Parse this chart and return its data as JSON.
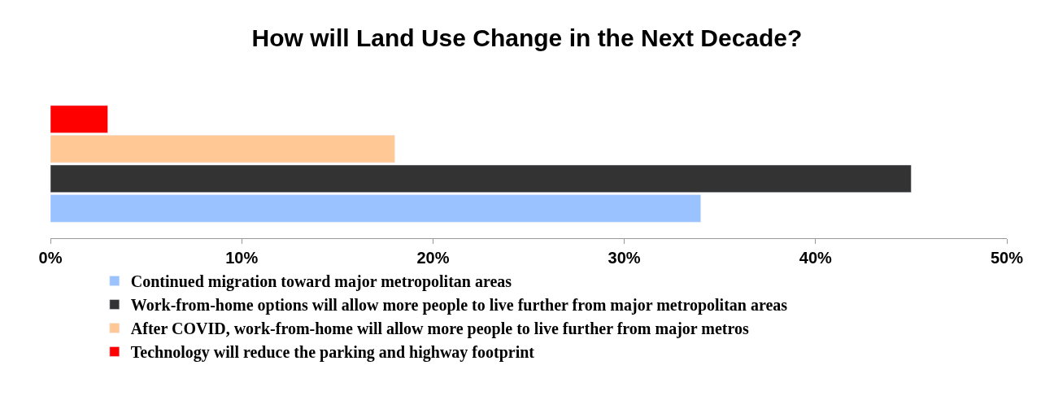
{
  "chart_data": {
    "type": "bar",
    "orientation": "horizontal",
    "title": "How will Land Use Change in the Next Decade?",
    "categories": [
      null
    ],
    "series": [
      {
        "name": "Technology will reduce the parking and highway footprint",
        "color": "#ff0000",
        "values": [
          3
        ]
      },
      {
        "name": "After COVID, work-from-home will allow more people to live further from major metros",
        "color": "#ffc895",
        "values": [
          18
        ]
      },
      {
        "name": "Work-from-home options will allow more people to live further from major metropolitan areas",
        "color": "#333333",
        "values": [
          45
        ]
      },
      {
        "name": "Continued migration toward major metropolitan areas",
        "color": "#99c2ff",
        "values": [
          34
        ]
      }
    ],
    "xlim": [
      0,
      50
    ],
    "xticks": [
      {
        "value": 0,
        "label": "0%"
      },
      {
        "value": 10,
        "label": "10%"
      },
      {
        "value": 20,
        "label": "20%"
      },
      {
        "value": 30,
        "label": "30%"
      },
      {
        "value": 40,
        "label": "40%"
      },
      {
        "value": 50,
        "label": "50%"
      }
    ],
    "legend": "bottom"
  }
}
